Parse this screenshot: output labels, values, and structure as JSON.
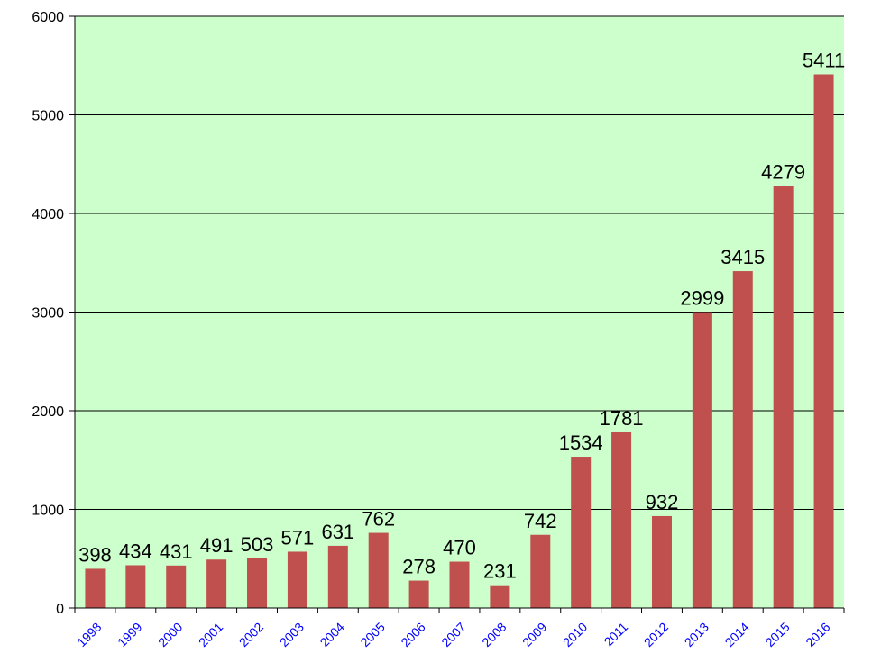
{
  "chart_data": {
    "type": "bar",
    "categories": [
      "1998",
      "1999",
      "2000",
      "2001",
      "2002",
      "2003",
      "2004",
      "2005",
      "2006",
      "2007",
      "2008",
      "2009",
      "2010",
      "2011",
      "2012",
      "2013",
      "2014",
      "2015",
      "2016"
    ],
    "values": [
      398,
      434,
      431,
      491,
      503,
      571,
      631,
      762,
      278,
      470,
      231,
      742,
      1534,
      1781,
      932,
      2999,
      3415,
      4279,
      5411
    ],
    "title": "",
    "xlabel": "",
    "ylabel": "",
    "ylim": [
      0,
      6000
    ],
    "yticks": [
      0,
      1000,
      2000,
      3000,
      4000,
      5000,
      6000
    ],
    "grid": true,
    "legend": "none",
    "colors": {
      "bar": "#c0504d",
      "plot_background": "#ccffcc",
      "x_tick_label": "#0000ff",
      "y_tick_label": "#000000",
      "gridline": "#000000"
    }
  }
}
